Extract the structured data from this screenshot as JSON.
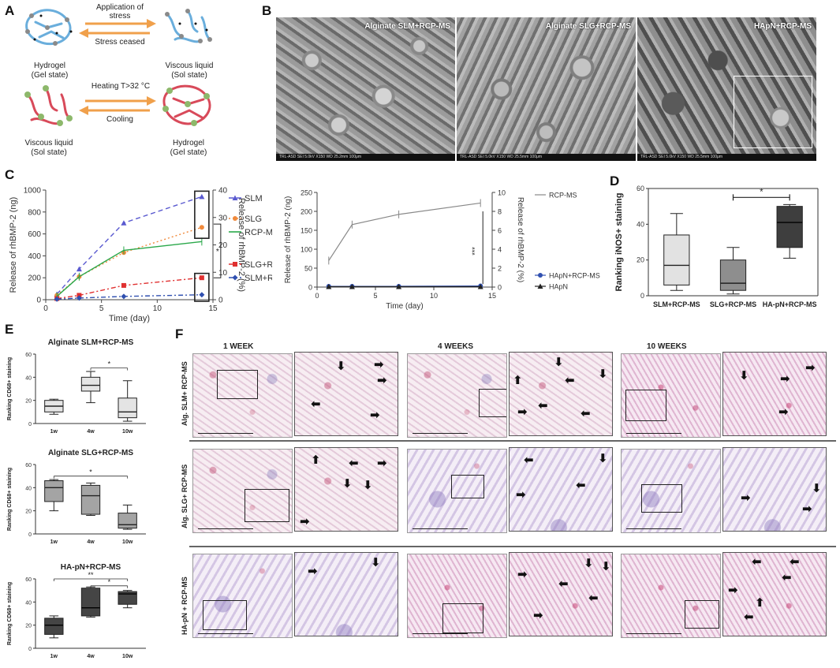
{
  "panels": {
    "A": "A",
    "B": "B",
    "C": "C",
    "D": "D",
    "E": "E",
    "F": "F"
  },
  "panel_a": {
    "arrow_top": "Application of stress",
    "arrow_bottom": "Stress ceased",
    "left_top": [
      "Hydrogel",
      "(Gel state)"
    ],
    "right_top": [
      "Viscous liquid",
      "(Sol state)"
    ],
    "arrow2_top": "Heating T>32 °C",
    "arrow2_bottom": "Cooling",
    "left_bottom": [
      "Viscous liquid",
      "(Sol state)"
    ],
    "right_bottom": [
      "Hydrogel",
      "(Gel state)"
    ],
    "colors": {
      "arrow": "#f0a04b",
      "polymer_blue": "#6aaedc",
      "polymer_red": "#d84a5a",
      "bead": "#8db86b"
    }
  },
  "panel_b": {
    "images": [
      {
        "label": "Alginate SLM+RCP-MS",
        "footer": "TRL-ASD    SEI    5.0kV    X150    WD 25.2mm    100μm"
      },
      {
        "label": "Alginate SLG+RCP-MS",
        "footer": "TRL-ASD    SEI    5.0kV    X150    WD 25.5mm    100μm"
      },
      {
        "label": "HApN+RCP-MS",
        "footer": "TRL-ASD    SEI    5.0kV    X150    WD 25.5mm    100μm"
      }
    ]
  },
  "chart_data": [
    {
      "id": "C-left",
      "type": "line",
      "xlabel": "Time (day)",
      "ylabel": "Release of rhBMP-2 (ng)",
      "ylabel_right": "Release of rhBMP-2 (%)",
      "xlim": [
        0,
        15
      ],
      "ylim": [
        0,
        1000
      ],
      "ylim_right": [
        0,
        40
      ],
      "xticks": [
        0,
        5,
        10,
        15
      ],
      "yticks": [
        0,
        200,
        400,
        600,
        800,
        1000
      ],
      "yticks_right": [
        0,
        10,
        20,
        30,
        40
      ],
      "annotation": "*",
      "series": [
        {
          "name": "SLM",
          "color": "#5a5ad0",
          "dash": "6,4",
          "marker": "triangle",
          "x": [
            1,
            3,
            7,
            14
          ],
          "y": [
            50,
            280,
            700,
            940
          ]
        },
        {
          "name": "SLG",
          "color": "#f08a3c",
          "dash": "2,3",
          "marker": "circle",
          "x": [
            1,
            3,
            7,
            14
          ],
          "y": [
            40,
            210,
            430,
            660
          ]
        },
        {
          "name": "RCP-MS",
          "color": "#2aa84a",
          "dash": "",
          "marker": "none",
          "x": [
            1,
            3,
            7,
            14
          ],
          "y": [
            30,
            210,
            450,
            530
          ]
        },
        {
          "name": "SLG+RCP-MS",
          "color": "#e03030",
          "dash": "6,3,2,3",
          "marker": "square",
          "x": [
            1,
            3,
            7,
            14
          ],
          "y": [
            10,
            40,
            130,
            200
          ]
        },
        {
          "name": "SLM+RCP-MS",
          "color": "#3050b0",
          "dash": "6,3,2,3",
          "marker": "diamond",
          "x": [
            1,
            3,
            7,
            14
          ],
          "y": [
            5,
            15,
            30,
            45
          ]
        }
      ]
    },
    {
      "id": "C-right",
      "type": "line",
      "xlabel": "Time (day)",
      "ylabel": "Release of rhBMP-2 (ng)",
      "ylabel_right": "Release of rhBMP-2 (%)",
      "xlim": [
        0,
        15
      ],
      "ylim": [
        0,
        250
      ],
      "ylim_right": [
        0,
        10
      ],
      "xticks": [
        0,
        5,
        10,
        15
      ],
      "yticks": [
        0,
        50,
        100,
        150,
        200,
        250
      ],
      "yticks_right": [
        0,
        2,
        4,
        6,
        8,
        10
      ],
      "annotation": "***",
      "series": [
        {
          "name": "RCP-MS",
          "color": "#888888",
          "marker": "none",
          "x": [
            1,
            3,
            7,
            14
          ],
          "y": [
            70,
            165,
            192,
            222
          ]
        },
        {
          "name": "HApN+RCP-MS",
          "color": "#3050b0",
          "marker": "circle",
          "x": [
            1,
            3,
            7,
            14
          ],
          "y": [
            2,
            2,
            2,
            3
          ]
        },
        {
          "name": "HApN",
          "color": "#222222",
          "marker": "triangle",
          "x": [
            1,
            3,
            7,
            14
          ],
          "y": [
            1,
            1,
            1,
            1
          ]
        }
      ]
    },
    {
      "id": "D",
      "type": "box",
      "ylabel": "Ranking iNOS+ staining",
      "ylim": [
        0,
        60
      ],
      "yticks": [
        0,
        20,
        40,
        60
      ],
      "annotation": "*",
      "categories": [
        "SLM+RCP-MS",
        "SLG+RCP-MS",
        "HA-pN+RCP-MS"
      ],
      "boxes": [
        {
          "min": 3,
          "q1": 6,
          "median": 17,
          "q3": 34,
          "max": 46,
          "fill": "#e2e2e2"
        },
        {
          "min": 1,
          "q1": 3,
          "median": 7,
          "q3": 20,
          "max": 27,
          "fill": "#8e8e8e"
        },
        {
          "min": 21,
          "q1": 27,
          "median": 41,
          "q3": 50,
          "max": 51,
          "fill": "#3e3e3e"
        }
      ]
    },
    {
      "id": "E1",
      "type": "box",
      "title": "Alginate SLM+RCP-MS",
      "ylabel": "Ranking CD68+ staining",
      "ylim": [
        0,
        60
      ],
      "yticks": [
        0,
        20,
        40,
        60
      ],
      "annotation": "*",
      "categories": [
        "1w",
        "4w",
        "10w"
      ],
      "fill": "#e4e4e4",
      "boxes": [
        {
          "min": 8,
          "q1": 10,
          "median": 15,
          "q3": 20,
          "max": 21
        },
        {
          "min": 18,
          "q1": 28,
          "median": 33,
          "q3": 40,
          "max": 45
        },
        {
          "min": 2,
          "q1": 5,
          "median": 10,
          "q3": 22,
          "max": 37
        }
      ]
    },
    {
      "id": "E2",
      "type": "box",
      "title": "Alginate SLG+RCP-MS",
      "ylabel": "Ranking CD68+ staining",
      "ylim": [
        0,
        60
      ],
      "yticks": [
        0,
        20,
        40,
        60
      ],
      "annotation": "*",
      "categories": [
        "1w",
        "4w",
        "10w"
      ],
      "fill": "#a4a4a4",
      "boxes": [
        {
          "min": 20,
          "q1": 28,
          "median": 40,
          "q3": 46,
          "max": 47
        },
        {
          "min": 16,
          "q1": 17,
          "median": 33,
          "q3": 42,
          "max": 44
        },
        {
          "min": 4,
          "q1": 5,
          "median": 8,
          "q3": 18,
          "max": 25
        }
      ]
    },
    {
      "id": "E3",
      "type": "box",
      "title": "HA-pN+RCP-MS",
      "ylabel": "Ranking CD68+ staining",
      "ylim": [
        0,
        60
      ],
      "yticks": [
        0,
        20,
        40,
        60
      ],
      "annotations": [
        "**",
        "*"
      ],
      "categories": [
        "1w",
        "4w",
        "10w"
      ],
      "fill": "#454545",
      "boxes": [
        {
          "min": 9,
          "q1": 12,
          "median": 20,
          "q3": 26,
          "max": 28
        },
        {
          "min": 27,
          "q1": 28,
          "median": 35,
          "q3": 52,
          "max": 53
        },
        {
          "min": 35,
          "q1": 38,
          "median": 47,
          "q3": 49,
          "max": 50
        }
      ]
    }
  ],
  "panel_f": {
    "columns": [
      "1 WEEK",
      "4 WEEKS",
      "10 WEEKS"
    ],
    "rows": [
      "Alg. SLM+ RCP-MS",
      "Alg. SLG+ RCP-MS",
      "HA-pN + RCP-MS"
    ]
  }
}
